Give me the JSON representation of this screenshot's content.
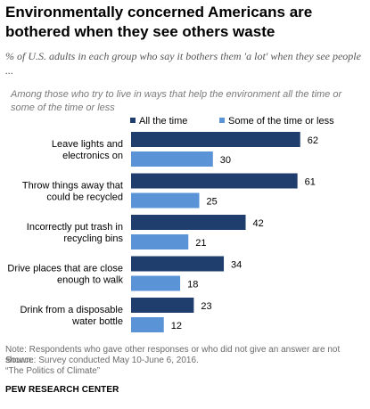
{
  "title": "Environmentally concerned Americans are bothered when they see others waste",
  "subtitle": "% of U.S. adults in each group who say it bothers them 'a lot' when they see people ...",
  "group_label": "Among those who try to live in ways that help the environment all the time or some of the time or less",
  "notes": {
    "note": "Note: Respondents who gave other responses or who did not give an answer are not shown.",
    "source": "Source: Survey conducted May 10-June 6, 2016.",
    "report": "“The Politics of Climate”"
  },
  "org": "PEW RESEARCH CENTER",
  "colors": {
    "all_the_time": "#1f3d6d",
    "some_or_less": "#5b93d7"
  },
  "chart_data": {
    "type": "bar",
    "orientation": "horizontal",
    "categories": [
      [
        "Leave lights and",
        "electronics on"
      ],
      [
        "Throw  things away that",
        "could be recycled"
      ],
      [
        "Incorrectly put trash in",
        "recycling bins"
      ],
      [
        "Drive places that are close",
        "enough to walk"
      ],
      [
        "Drink from a disposable",
        "water bottle"
      ]
    ],
    "series": [
      {
        "name": "All the time",
        "values": [
          62,
          61,
          42,
          34,
          23
        ]
      },
      {
        "name": "Some of the time or less",
        "values": [
          30,
          25,
          21,
          18,
          12
        ]
      }
    ],
    "legend_position": "top"
  }
}
